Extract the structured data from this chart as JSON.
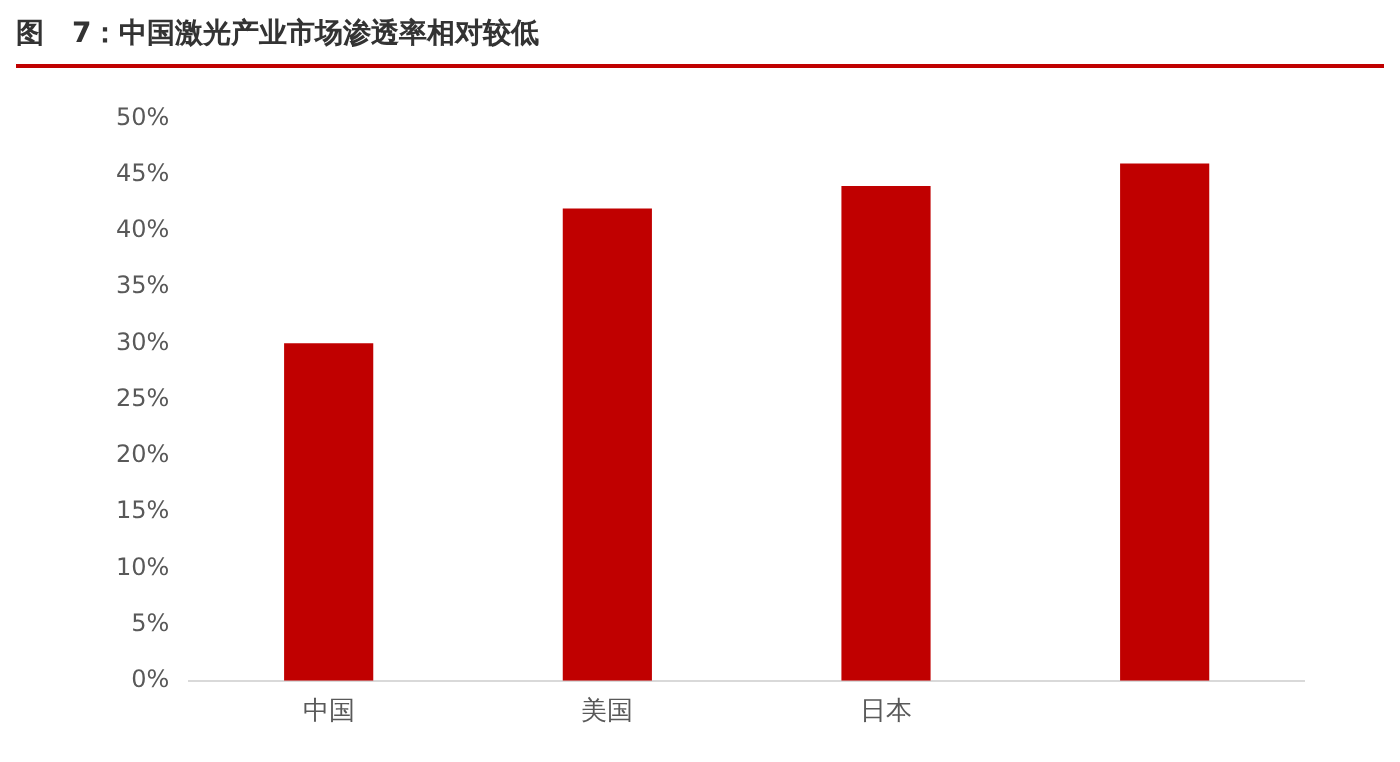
{
  "chart_data": {
    "type": "bar",
    "title": "图　7：中国激光产业市场渗透率相对较低",
    "categories": [
      "中国",
      "美国",
      "日本",
      null
    ],
    "values": [
      30,
      42,
      44,
      46
    ],
    "color": "#c00000",
    "ylim": [
      0,
      50
    ],
    "yticks": [
      {
        "value": 0,
        "label": "0%"
      },
      {
        "value": 5,
        "label": "5%"
      },
      {
        "value": 10,
        "label": "10%"
      },
      {
        "value": 15,
        "label": "15%"
      },
      {
        "value": 20,
        "label": "20%"
      },
      {
        "value": 25,
        "label": "25%"
      },
      {
        "value": 30,
        "label": "30%"
      },
      {
        "value": 35,
        "label": "35%"
      },
      {
        "value": 40,
        "label": "40%"
      },
      {
        "value": 45,
        "label": "45%"
      },
      {
        "value": 50,
        "label": "50%"
      }
    ],
    "grid": false,
    "legend": false
  }
}
